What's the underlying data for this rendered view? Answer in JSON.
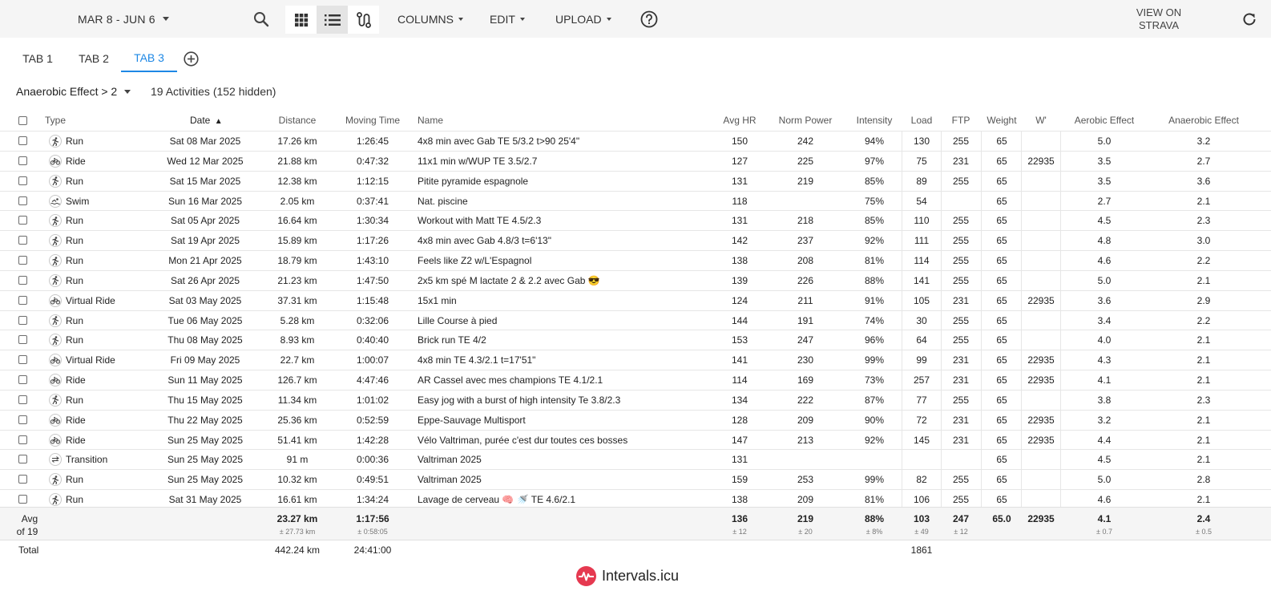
{
  "toolbar": {
    "date_range": "MAR 8 - JUN 6",
    "columns_label": "COLUMNS",
    "edit_label": "EDIT",
    "upload_label": "UPLOAD",
    "strava_line1": "VIEW ON",
    "strava_line2": "STRAVA"
  },
  "tabs": [
    {
      "label": "TAB 1",
      "active": false
    },
    {
      "label": "TAB 2",
      "active": false
    },
    {
      "label": "TAB 3",
      "active": true
    }
  ],
  "filter": {
    "label": "Anaerobic Effect > 2",
    "summary": "19 Activities (152 hidden)"
  },
  "columns": [
    "Type",
    "Date",
    "Distance",
    "Moving Time",
    "Name",
    "Avg HR",
    "Norm Power",
    "Intensity",
    "Load",
    "FTP",
    "Weight",
    "W'",
    "Aerobic Effect",
    "Anaerobic Effect"
  ],
  "sort": {
    "column": "Date",
    "direction": "ascending"
  },
  "activities": [
    {
      "type": "Run",
      "icon": "run-icon",
      "date": "Sat 08 Mar 2025",
      "distance": "17.26 km",
      "time": "1:26:45",
      "name": "4x8 min avec Gab TE 5/3.2 t>90 25'4\"",
      "hr": "150",
      "np": "242",
      "intensity": "94%",
      "load": "130",
      "ftp": "255",
      "weight": "65",
      "wprime": "",
      "aerobic": "5.0",
      "anaerobic": "3.2"
    },
    {
      "type": "Ride",
      "icon": "bike-icon",
      "date": "Wed 12 Mar 2025",
      "distance": "21.88 km",
      "time": "0:47:32",
      "name": "11x1 min w/WUP TE 3.5/2.7",
      "hr": "127",
      "np": "225",
      "intensity": "97%",
      "load": "75",
      "ftp": "231",
      "weight": "65",
      "wprime": "22935",
      "aerobic": "3.5",
      "anaerobic": "2.7"
    },
    {
      "type": "Run",
      "icon": "run-icon",
      "date": "Sat 15 Mar 2025",
      "distance": "12.38 km",
      "time": "1:12:15",
      "name": "Pitite pyramide espagnole",
      "hr": "131",
      "np": "219",
      "intensity": "85%",
      "load": "89",
      "ftp": "255",
      "weight": "65",
      "wprime": "",
      "aerobic": "3.5",
      "anaerobic": "3.6"
    },
    {
      "type": "Swim",
      "icon": "swim-icon",
      "date": "Sun 16 Mar 2025",
      "distance": "2.05 km",
      "time": "0:37:41",
      "name": "Nat. piscine",
      "hr": "118",
      "np": "",
      "intensity": "75%",
      "load": "54",
      "ftp": "",
      "weight": "65",
      "wprime": "",
      "aerobic": "2.7",
      "anaerobic": "2.1"
    },
    {
      "type": "Run",
      "icon": "run-icon",
      "date": "Sat 05 Apr 2025",
      "distance": "16.64 km",
      "time": "1:30:34",
      "name": "Workout with Matt TE 4.5/2.3",
      "hr": "131",
      "np": "218",
      "intensity": "85%",
      "load": "110",
      "ftp": "255",
      "weight": "65",
      "wprime": "",
      "aerobic": "4.5",
      "anaerobic": "2.3"
    },
    {
      "type": "Run",
      "icon": "run-icon",
      "date": "Sat 19 Apr 2025",
      "distance": "15.89 km",
      "time": "1:17:26",
      "name": "4x8 min avec Gab 4.8/3 t=6'13\"",
      "hr": "142",
      "np": "237",
      "intensity": "92%",
      "load": "111",
      "ftp": "255",
      "weight": "65",
      "wprime": "",
      "aerobic": "4.8",
      "anaerobic": "3.0"
    },
    {
      "type": "Run",
      "icon": "run-icon",
      "date": "Mon 21 Apr 2025",
      "distance": "18.79 km",
      "time": "1:43:10",
      "name": "Feels like Z2 w/L'Espagnol",
      "hr": "138",
      "np": "208",
      "intensity": "81%",
      "load": "114",
      "ftp": "255",
      "weight": "65",
      "wprime": "",
      "aerobic": "4.6",
      "anaerobic": "2.2"
    },
    {
      "type": "Run",
      "icon": "run-icon",
      "date": "Sat 26 Apr 2025",
      "distance": "21.23 km",
      "time": "1:47:50",
      "name": "2x5 km spé M lactate 2 & 2.2 avec Gab 😎",
      "hr": "139",
      "np": "226",
      "intensity": "88%",
      "load": "141",
      "ftp": "255",
      "weight": "65",
      "wprime": "",
      "aerobic": "5.0",
      "anaerobic": "2.1"
    },
    {
      "type": "Virtual Ride",
      "icon": "bike-icon",
      "date": "Sat 03 May 2025",
      "distance": "37.31 km",
      "time": "1:15:48",
      "name": "15x1 min",
      "hr": "124",
      "np": "211",
      "intensity": "91%",
      "load": "105",
      "ftp": "231",
      "weight": "65",
      "wprime": "22935",
      "aerobic": "3.6",
      "anaerobic": "2.9"
    },
    {
      "type": "Run",
      "icon": "run-icon",
      "date": "Tue 06 May 2025",
      "distance": "5.28 km",
      "time": "0:32:06",
      "name": "Lille Course à pied",
      "hr": "144",
      "np": "191",
      "intensity": "74%",
      "load": "30",
      "ftp": "255",
      "weight": "65",
      "wprime": "",
      "aerobic": "3.4",
      "anaerobic": "2.2"
    },
    {
      "type": "Run",
      "icon": "run-icon",
      "date": "Thu 08 May 2025",
      "distance": "8.93 km",
      "time": "0:40:40",
      "name": "Brick run TE 4/2",
      "hr": "153",
      "np": "247",
      "intensity": "96%",
      "load": "64",
      "ftp": "255",
      "weight": "65",
      "wprime": "",
      "aerobic": "4.0",
      "anaerobic": "2.1"
    },
    {
      "type": "Virtual Ride",
      "icon": "bike-icon",
      "date": "Fri 09 May 2025",
      "distance": "22.7 km",
      "time": "1:00:07",
      "name": "4x8 min TE 4.3/2.1 t=17'51\"",
      "hr": "141",
      "np": "230",
      "intensity": "99%",
      "load": "99",
      "ftp": "231",
      "weight": "65",
      "wprime": "22935",
      "aerobic": "4.3",
      "anaerobic": "2.1"
    },
    {
      "type": "Ride",
      "icon": "bike-icon",
      "date": "Sun 11 May 2025",
      "distance": "126.7 km",
      "time": "4:47:46",
      "name": "AR Cassel avec mes champions TE 4.1/2.1",
      "hr": "114",
      "np": "169",
      "intensity": "73%",
      "load": "257",
      "ftp": "231",
      "weight": "65",
      "wprime": "22935",
      "aerobic": "4.1",
      "anaerobic": "2.1"
    },
    {
      "type": "Run",
      "icon": "run-icon",
      "date": "Thu 15 May 2025",
      "distance": "11.34 km",
      "time": "1:01:02",
      "name": "Easy jog with a burst of high intensity Te 3.8/2.3",
      "hr": "134",
      "np": "222",
      "intensity": "87%",
      "load": "77",
      "ftp": "255",
      "weight": "65",
      "wprime": "",
      "aerobic": "3.8",
      "anaerobic": "2.3"
    },
    {
      "type": "Ride",
      "icon": "bike-icon",
      "date": "Thu 22 May 2025",
      "distance": "25.36 km",
      "time": "0:52:59",
      "name": "Eppe-Sauvage Multisport",
      "hr": "128",
      "np": "209",
      "intensity": "90%",
      "load": "72",
      "ftp": "231",
      "weight": "65",
      "wprime": "22935",
      "aerobic": "3.2",
      "anaerobic": "2.1"
    },
    {
      "type": "Ride",
      "icon": "bike-icon",
      "date": "Sun 25 May 2025",
      "distance": "51.41 km",
      "time": "1:42:28",
      "name": "Vélo Valtriman, purée c'est dur toutes ces bosses",
      "hr": "147",
      "np": "213",
      "intensity": "92%",
      "load": "145",
      "ftp": "231",
      "weight": "65",
      "wprime": "22935",
      "aerobic": "4.4",
      "anaerobic": "2.1"
    },
    {
      "type": "Transition",
      "icon": "transition-icon",
      "date": "Sun 25 May 2025",
      "distance": "91 m",
      "time": "0:00:36",
      "name": "Valtriman 2025",
      "hr": "131",
      "np": "",
      "intensity": "",
      "load": "",
      "ftp": "",
      "weight": "65",
      "wprime": "",
      "aerobic": "4.5",
      "anaerobic": "2.1"
    },
    {
      "type": "Run",
      "icon": "run-icon",
      "date": "Sun 25 May 2025",
      "distance": "10.32 km",
      "time": "0:49:51",
      "name": "Valtriman 2025",
      "hr": "159",
      "np": "253",
      "intensity": "99%",
      "load": "82",
      "ftp": "255",
      "weight": "65",
      "wprime": "",
      "aerobic": "5.0",
      "anaerobic": "2.8"
    },
    {
      "type": "Run",
      "icon": "run-icon",
      "date": "Sat 31 May 2025",
      "distance": "16.61 km",
      "time": "1:34:24",
      "name": "Lavage de cerveau 🧠 🚿 TE 4.6/2.1",
      "hr": "138",
      "np": "209",
      "intensity": "81%",
      "load": "106",
      "ftp": "255",
      "weight": "65",
      "wprime": "",
      "aerobic": "4.6",
      "anaerobic": "2.1"
    }
  ],
  "average": {
    "label_line1": "Avg",
    "label_line2": "of 19",
    "distance": "23.27 km",
    "distance_sd": "± 27.73 km",
    "time": "1:17:56",
    "time_sd": "± 0:58:05",
    "hr": "136",
    "hr_sd": "± 12",
    "np": "219",
    "np_sd": "± 20",
    "intensity": "88%",
    "intensity_sd": "± 8%",
    "load": "103",
    "load_sd": "± 49",
    "ftp": "247",
    "ftp_sd": "± 12",
    "weight": "65.0",
    "wprime": "22935",
    "aerobic": "4.1",
    "aerobic_sd": "± 0.7",
    "anaerobic": "2.4",
    "anaerobic_sd": "± 0.5"
  },
  "total": {
    "label": "Total",
    "distance": "442.24 km",
    "time": "24:41:00",
    "load": "1861"
  },
  "brand": {
    "name": "Intervals.icu",
    "color": "#e53950"
  },
  "accent_color": "#1e88e5"
}
